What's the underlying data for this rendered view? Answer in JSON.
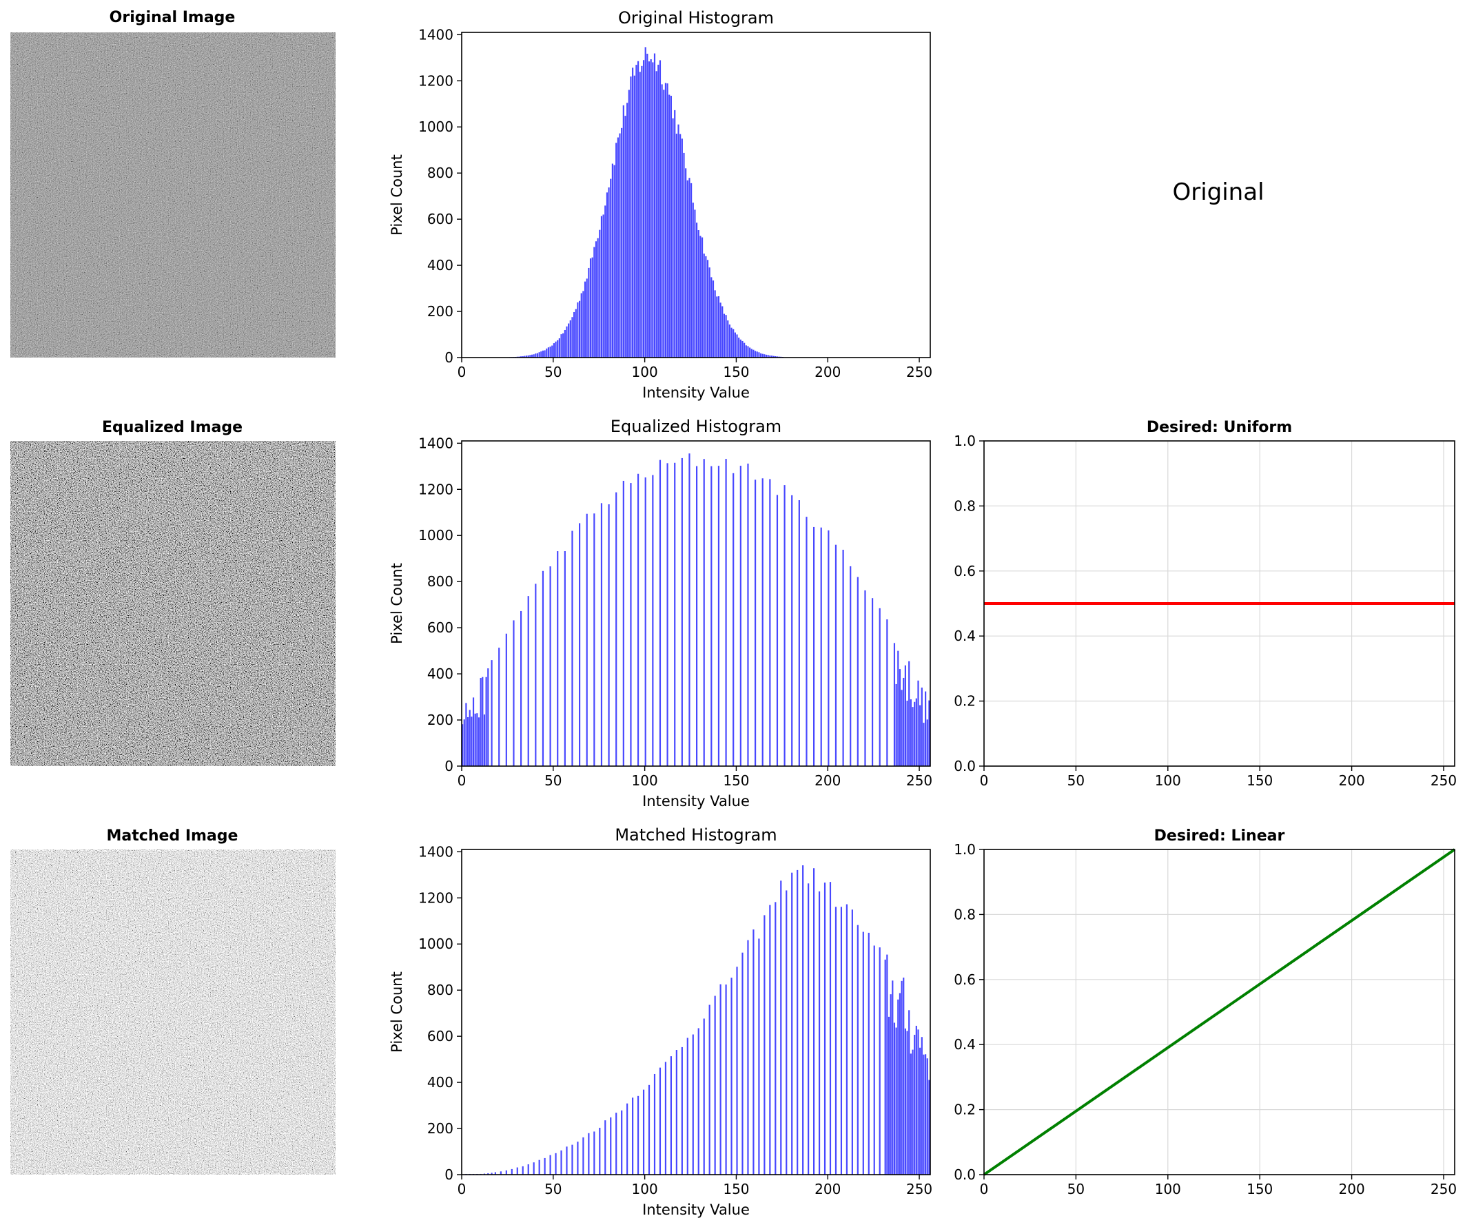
{
  "figure": {
    "images": [
      {
        "title": "Original Image",
        "contrast": "low"
      },
      {
        "title": "Equalized Image",
        "contrast": "high"
      },
      {
        "title": "Matched Image",
        "contrast": "bright"
      }
    ],
    "caption_text": "Original"
  },
  "chart_data": [
    {
      "type": "bar",
      "title": "Original Histogram",
      "xlabel": "Intensity Value",
      "ylabel": "Pixel Count",
      "xlim": [
        0,
        256
      ],
      "ylim": [
        0,
        1410
      ],
      "xticks": [
        0,
        50,
        100,
        150,
        200,
        250
      ],
      "yticks": [
        0,
        200,
        400,
        600,
        800,
        1000,
        1200,
        1400
      ],
      "color": "#0000ff",
      "distribution": {
        "kind": "gaussian",
        "mean": 102,
        "std": 21,
        "peak": 1340,
        "min_x": 10,
        "max_x": 175
      },
      "grid": false
    },
    {
      "type": "bar",
      "title": "Equalized Histogram",
      "xlabel": "Intensity Value",
      "ylabel": "Pixel Count",
      "xlim": [
        0,
        256
      ],
      "ylim": [
        0,
        1410
      ],
      "xticks": [
        0,
        50,
        100,
        150,
        200,
        250
      ],
      "yticks": [
        0,
        200,
        400,
        600,
        800,
        1000,
        1200,
        1400
      ],
      "color": "#0000ff",
      "distribution": {
        "kind": "equalized",
        "center": 130,
        "peak": 1340,
        "edge": 300,
        "dense_low": 15,
        "dense_high": 235
      },
      "grid": false
    },
    {
      "type": "bar",
      "title": "Matched Histogram",
      "xlabel": "Intensity Value",
      "ylabel": "Pixel Count",
      "xlim": [
        0,
        256
      ],
      "ylim": [
        0,
        1410
      ],
      "xticks": [
        0,
        50,
        100,
        150,
        200,
        250
      ],
      "yticks": [
        0,
        200,
        400,
        600,
        800,
        1000,
        1200,
        1400
      ],
      "color": "#0000ff",
      "distribution": {
        "kind": "matched",
        "peak_at": 180,
        "peak": 1340,
        "edge": 550,
        "dense_high": 230
      },
      "grid": false
    },
    {
      "type": "line",
      "title": "Desired: Uniform",
      "xlim": [
        0,
        256
      ],
      "ylim": [
        0,
        1
      ],
      "xticks": [
        0,
        50,
        100,
        150,
        200,
        250
      ],
      "yticks": [
        0.0,
        0.2,
        0.4,
        0.6,
        0.8,
        1.0
      ],
      "x": [
        0,
        256
      ],
      "y": [
        0.5,
        0.5
      ],
      "color": "#ff0000",
      "grid": true
    },
    {
      "type": "line",
      "title": "Desired: Linear",
      "xlim": [
        0,
        256
      ],
      "ylim": [
        0,
        1
      ],
      "xticks": [
        0,
        50,
        100,
        150,
        200,
        250
      ],
      "yticks": [
        0.0,
        0.2,
        0.4,
        0.6,
        0.8,
        1.0
      ],
      "x": [
        0,
        256
      ],
      "y": [
        0.0,
        1.0
      ],
      "color": "#008000",
      "grid": true
    }
  ]
}
